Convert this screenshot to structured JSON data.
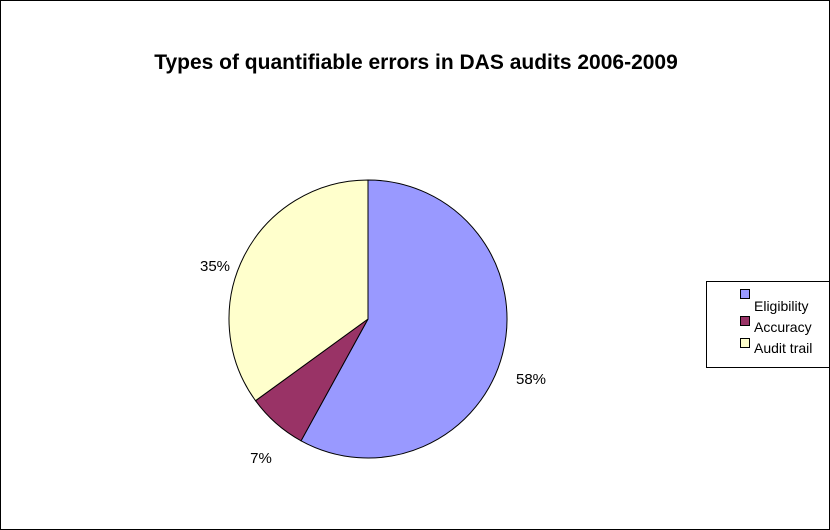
{
  "chart_data": {
    "type": "pie",
    "title": "Types of quantifiable errors in DAS audits 2006-2009",
    "categories": [
      "Eligibility",
      "Accuracy",
      "Audit trail"
    ],
    "values": [
      58,
      7,
      35
    ],
    "labels": [
      "58%",
      "7%",
      "35%"
    ],
    "colors": [
      "#9999FF",
      "#993366",
      "#FFFFCC"
    ],
    "legend_position": "right",
    "grid": false
  }
}
